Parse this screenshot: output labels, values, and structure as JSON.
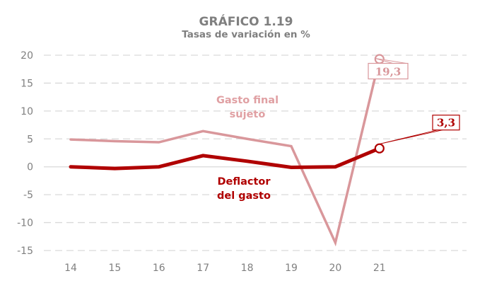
{
  "chart_data": {
    "type": "line",
    "title": "GRÁFICO 1.19",
    "subtitle": "Tasas de variación en %",
    "xlabel": "",
    "ylabel": "",
    "categories": [
      "14",
      "15",
      "16",
      "17",
      "18",
      "19",
      "20",
      "21"
    ],
    "ylim": [
      -15,
      20
    ],
    "yticks": [
      20,
      15,
      10,
      5,
      0,
      -5,
      -10,
      -15
    ],
    "ytick_labels": [
      "20",
      "15",
      "10",
      "5",
      "0",
      "-5",
      "-10",
      "-15"
    ],
    "grid": true,
    "legend": "none (inline labels)",
    "series": [
      {
        "name": "Gasto final sujeto",
        "label_lines": [
          "Gasto final",
          "sujeto"
        ],
        "color": "#d9979b",
        "values": [
          4.9,
          4.6,
          4.4,
          6.4,
          5.0,
          3.7,
          -13.6,
          19.3
        ],
        "end_label": "19,3"
      },
      {
        "name": "Deflactor del gasto",
        "label_lines": [
          "Deflactor",
          "del gasto"
        ],
        "color": "#b00000",
        "values": [
          0.0,
          -0.3,
          0.0,
          2.0,
          1.0,
          -0.1,
          0.0,
          3.3
        ],
        "end_label": "3,3"
      }
    ]
  }
}
